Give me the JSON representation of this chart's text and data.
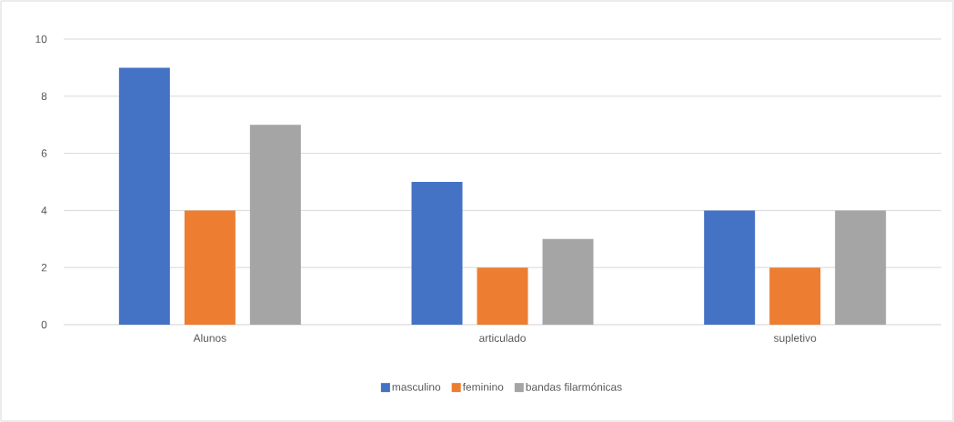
{
  "chart_data": {
    "type": "bar",
    "categories": [
      "Alunos",
      "articulado",
      "supletivo"
    ],
    "series": [
      {
        "name": "masculino",
        "color": "#4472c4",
        "values": [
          9,
          5,
          4
        ]
      },
      {
        "name": "feminino",
        "color": "#ed7d31",
        "values": [
          4,
          2,
          2
        ]
      },
      {
        "name": "bandas filarmónicas",
        "color": "#a5a5a5",
        "values": [
          7,
          3,
          4
        ]
      }
    ],
    "ylim": [
      0,
      10
    ],
    "yticks": [
      0,
      2,
      4,
      6,
      8,
      10
    ],
    "grid": "y",
    "legend": "bottom"
  }
}
